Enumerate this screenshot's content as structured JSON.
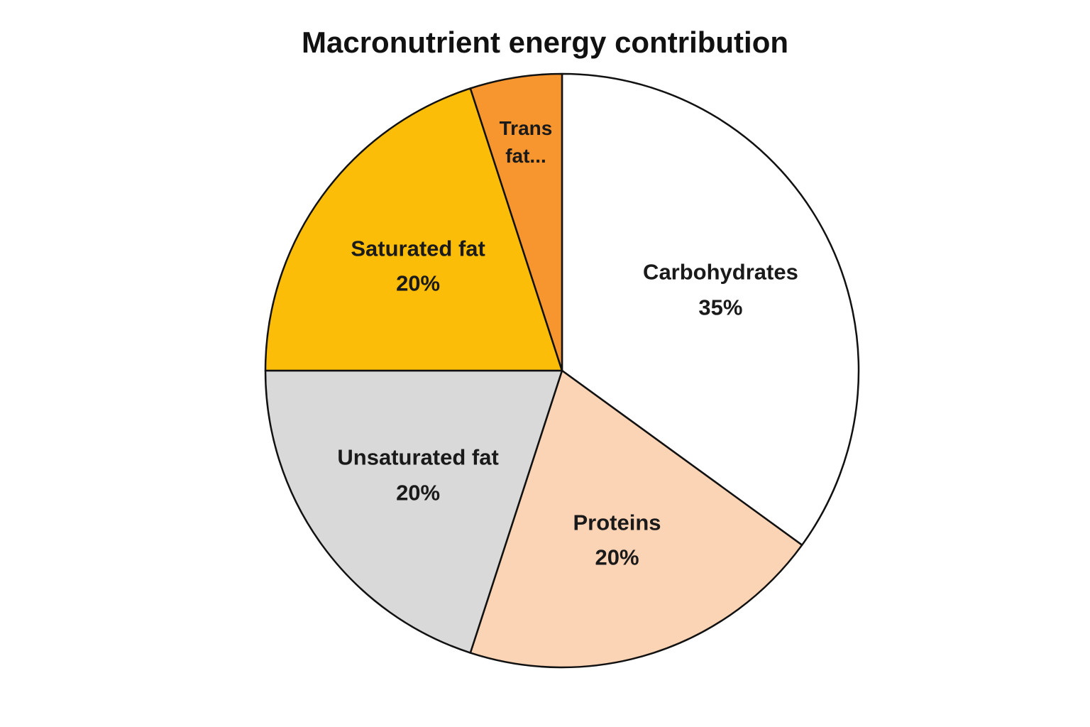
{
  "chart_data": {
    "type": "pie",
    "title": "Macronutrient energy contribution",
    "categories": [
      "Carbohydrates",
      "Proteins",
      "Unsaturated fat",
      "Saturated fat",
      "Trans fat..."
    ],
    "values": [
      35,
      20,
      20,
      20,
      5
    ],
    "value_labels": [
      "35%",
      "20%",
      "20%",
      "20%",
      null
    ],
    "colors": [
      "#ffffff",
      "#fbd3b5",
      "#d9d9d9",
      "#fbbd08",
      "#f7962e"
    ]
  }
}
